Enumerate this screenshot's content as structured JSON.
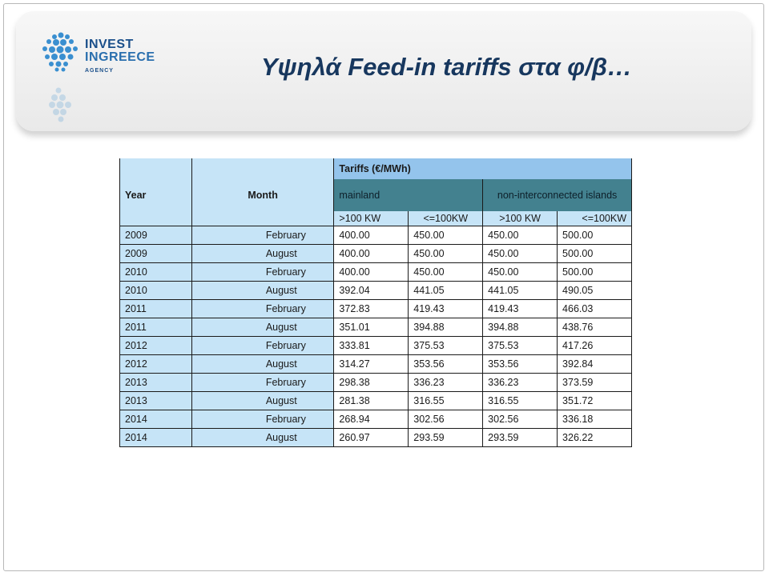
{
  "logo": {
    "line1": "INVEST",
    "line2": "INGREECE",
    "line3": "AGENCY"
  },
  "title": "Υψηλά Feed-in tariffs στα φ/β…",
  "table": {
    "tariffs_label": "Tariffs (€/MWh)",
    "year_label": "Year",
    "month_label": "Month",
    "group_mainland": "mainland",
    "group_islands": "non-interconnected islands",
    "sub_headers": [
      ">100 KW",
      "<=100KW",
      ">100 KW",
      "<=100KW"
    ],
    "rows": [
      {
        "year": "2009",
        "month": "February",
        "v": [
          "400.00",
          "450.00",
          "450.00",
          "500.00"
        ]
      },
      {
        "year": "2009",
        "month": "August",
        "v": [
          "400.00",
          "450.00",
          "450.00",
          "500.00"
        ]
      },
      {
        "year": "2010",
        "month": "February",
        "v": [
          "400.00",
          "450.00",
          "450.00",
          "500.00"
        ]
      },
      {
        "year": "2010",
        "month": "August",
        "v": [
          "392.04",
          "441.05",
          "441.05",
          "490.05"
        ]
      },
      {
        "year": "2011",
        "month": "February",
        "v": [
          "372.83",
          "419.43",
          "419.43",
          "466.03"
        ]
      },
      {
        "year": "2011",
        "month": "August",
        "v": [
          "351.01",
          "394.88",
          "394.88",
          "438.76"
        ]
      },
      {
        "year": "2012",
        "month": "February",
        "v": [
          "333.81",
          "375.53",
          "375.53",
          "417.26"
        ]
      },
      {
        "year": "2012",
        "month": "August",
        "v": [
          "314.27",
          "353.56",
          "353.56",
          "392.84"
        ]
      },
      {
        "year": "2013",
        "month": "February",
        "v": [
          "298.38",
          "336.23",
          "336.23",
          "373.59"
        ]
      },
      {
        "year": "2013",
        "month": "August",
        "v": [
          "281.38",
          "316.55",
          "316.55",
          "351.72"
        ]
      },
      {
        "year": "2014",
        "month": "February",
        "v": [
          "268.94",
          "302.56",
          "302.56",
          "336.18"
        ]
      },
      {
        "year": "2014",
        "month": "August",
        "v": [
          "260.97",
          "293.59",
          "293.59",
          "326.22"
        ]
      }
    ]
  },
  "colors": {
    "title": "#17375e",
    "light_blue": "#c6e4f7",
    "teal": "#43818f",
    "mid_blue": "#94c4ec"
  }
}
